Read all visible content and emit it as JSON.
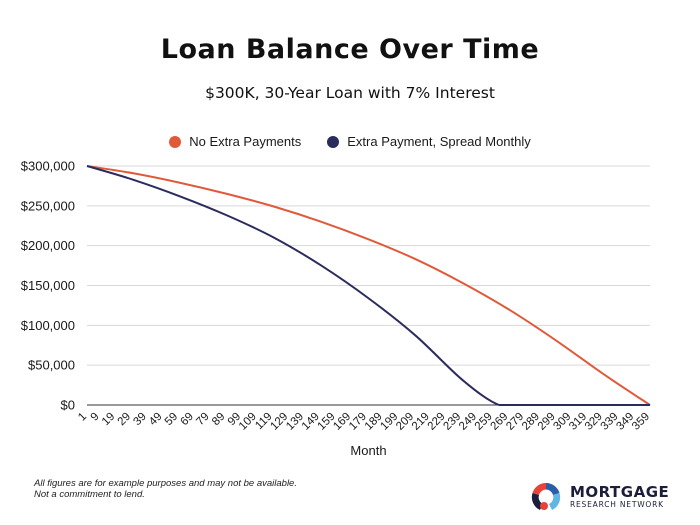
{
  "chart_data": {
    "type": "line",
    "title": "Loan Balance Over Time",
    "subtitle": "$300K, 30-Year Loan with 7% Interest",
    "xlabel": "Month",
    "ylabel": "",
    "ylim": [
      0,
      300000
    ],
    "xlim": [
      1,
      359
    ],
    "yticks": [
      "$0",
      "$50,000",
      "$100,000",
      "$150,000",
      "$200,000",
      "$250,000",
      "$300,000"
    ],
    "ytick_values": [
      0,
      50000,
      100000,
      150000,
      200000,
      250000,
      300000
    ],
    "xticks": [
      "1",
      "9",
      "19",
      "29",
      "39",
      "49",
      "59",
      "69",
      "79",
      "89",
      "99",
      "109",
      "119",
      "129",
      "139",
      "149",
      "159",
      "169",
      "179",
      "189",
      "199",
      "209",
      "219",
      "229",
      "239",
      "249",
      "259",
      "269",
      "279",
      "289",
      "299",
      "309",
      "319",
      "329",
      "339",
      "349",
      "359"
    ],
    "grid": true,
    "legend_position": "top-center",
    "series": [
      {
        "name": "No Extra Payments",
        "color": "#e05a3a",
        "x": [
          1,
          30,
          60,
          90,
          120,
          150,
          180,
          210,
          240,
          270,
          300,
          330,
          359
        ],
        "values": [
          300000,
          291000,
          279000,
          265000,
          249000,
          230000,
          208000,
          183000,
          153000,
          119000,
          80000,
          38000,
          0
        ]
      },
      {
        "name": "Extra Payment, Spread Monthly",
        "color": "#2b2c5e",
        "x": [
          1,
          30,
          60,
          90,
          120,
          150,
          180,
          210,
          240,
          263,
          280,
          300,
          330,
          359
        ],
        "values": [
          300000,
          283000,
          262000,
          238000,
          210000,
          175000,
          134000,
          87000,
          31000,
          0,
          0,
          0,
          0,
          0
        ]
      }
    ]
  },
  "footnote": [
    "All figures are for example purposes and may not be available.",
    "Not a commitment to lend."
  ],
  "logo": {
    "main": "MORTGAGE",
    "sub": "RESEARCH NETWORK"
  },
  "colors": {
    "grid": "#d9d9d9",
    "axis": "#333333"
  }
}
